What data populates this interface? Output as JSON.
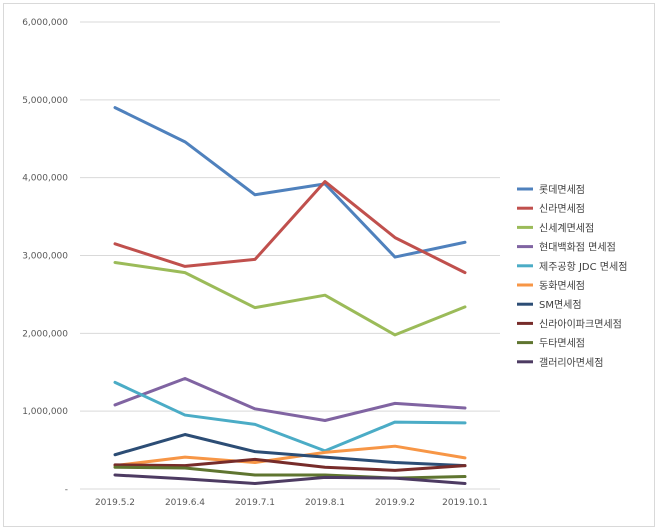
{
  "chart_data": {
    "type": "line",
    "title": "",
    "xlabel": "",
    "ylabel": "",
    "categories": [
      "2019.5.2",
      "2019.6.4",
      "2019.7.1",
      "2019.8.1",
      "2019.9.2",
      "2019.10.1"
    ],
    "ylim": [
      0,
      6000000
    ],
    "yticks": [
      {
        "value": 0,
        "label": "-"
      },
      {
        "value": 1000000,
        "label": "1,000,000"
      },
      {
        "value": 2000000,
        "label": "2,000,000"
      },
      {
        "value": 3000000,
        "label": "3,000,000"
      },
      {
        "value": 4000000,
        "label": "4,000,000"
      },
      {
        "value": 5000000,
        "label": "5,000,000"
      },
      {
        "value": 6000000,
        "label": "6,000,000"
      }
    ],
    "grid": true,
    "legend_position": "right",
    "series": [
      {
        "name": "롯데면세점",
        "color": "#4f81bd",
        "values": [
          4900000,
          4460000,
          3780000,
          3920000,
          2980000,
          3170000
        ]
      },
      {
        "name": "신라면세점",
        "color": "#c0504d",
        "values": [
          3150000,
          2860000,
          2950000,
          3950000,
          3230000,
          2780000
        ]
      },
      {
        "name": "신세계면세점",
        "color": "#9bbb59",
        "values": [
          2910000,
          2780000,
          2330000,
          2490000,
          1980000,
          2340000
        ]
      },
      {
        "name": "현대백화점 면세점",
        "color": "#8064a2",
        "values": [
          1080000,
          1420000,
          1030000,
          880000,
          1100000,
          1040000
        ]
      },
      {
        "name": "제주공항 JDC 면세점",
        "color": "#4bacc6",
        "values": [
          1370000,
          950000,
          830000,
          490000,
          860000,
          850000
        ]
      },
      {
        "name": "동화면세점",
        "color": "#f79646",
        "values": [
          300000,
          410000,
          340000,
          470000,
          550000,
          400000
        ]
      },
      {
        "name": "SM면세점",
        "color": "#2c4d75",
        "values": [
          440000,
          700000,
          480000,
          410000,
          340000,
          300000
        ]
      },
      {
        "name": "신라아이파크면세점",
        "color": "#772c2a",
        "values": [
          310000,
          300000,
          380000,
          280000,
          240000,
          300000
        ]
      },
      {
        "name": "두타면세점",
        "color": "#5f7530",
        "values": [
          280000,
          270000,
          180000,
          180000,
          140000,
          160000
        ]
      },
      {
        "name": "갤러리아면세점",
        "color": "#4d3b62",
        "values": [
          180000,
          130000,
          70000,
          150000,
          140000,
          70000
        ]
      }
    ]
  }
}
